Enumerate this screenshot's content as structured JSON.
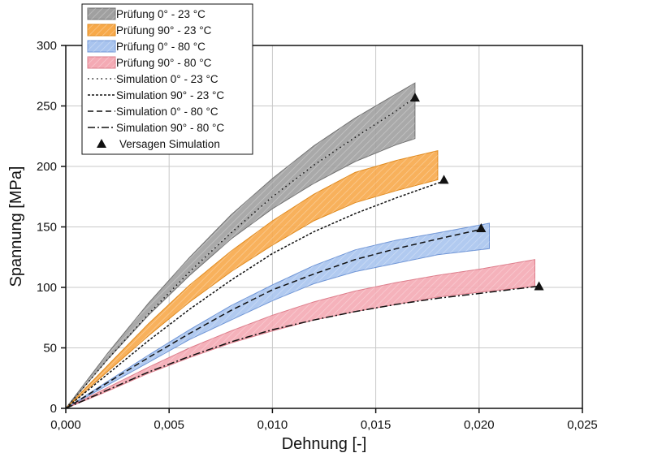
{
  "chart_data": {
    "type": "area",
    "xlabel": "Dehnung [-]",
    "ylabel": "Spannung [MPa]",
    "xlim": [
      0,
      0.025
    ],
    "ylim": [
      0,
      300
    ],
    "x_ticks": [
      0,
      0.005,
      0.01,
      0.015,
      0.02,
      0.025
    ],
    "x_tick_labels": [
      "0,000",
      "0,005",
      "0,010",
      "0,015",
      "0,020",
      "0,025"
    ],
    "y_ticks": [
      0,
      50,
      100,
      150,
      200,
      250,
      300
    ],
    "y_tick_labels": [
      "0",
      "50",
      "100",
      "150",
      "200",
      "250",
      "300"
    ],
    "grid": true,
    "legend_position": "top-left",
    "bands": [
      {
        "name": "Prüfung 0°   - 23 °C",
        "color": "#a0a0a0",
        "edge": "#707070",
        "upper": [
          [
            0,
            0
          ],
          [
            0.002,
            45
          ],
          [
            0.004,
            87
          ],
          [
            0.006,
            125
          ],
          [
            0.008,
            160
          ],
          [
            0.01,
            190
          ],
          [
            0.012,
            217
          ],
          [
            0.014,
            240
          ],
          [
            0.016,
            260
          ],
          [
            0.0169,
            269
          ]
        ],
        "lower": [
          [
            0,
            0
          ],
          [
            0.002,
            40
          ],
          [
            0.004,
            77
          ],
          [
            0.006,
            110
          ],
          [
            0.008,
            140
          ],
          [
            0.01,
            165
          ],
          [
            0.012,
            186
          ],
          [
            0.014,
            204
          ],
          [
            0.016,
            218
          ],
          [
            0.0169,
            223
          ]
        ]
      },
      {
        "name": "Prüfung 90° - 23 °C",
        "color": "#f7a94a",
        "edge": "#e08a1e",
        "upper": [
          [
            0,
            0
          ],
          [
            0.002,
            35
          ],
          [
            0.004,
            70
          ],
          [
            0.006,
            102
          ],
          [
            0.008,
            130
          ],
          [
            0.01,
            155
          ],
          [
            0.012,
            177
          ],
          [
            0.014,
            195
          ],
          [
            0.016,
            205
          ],
          [
            0.018,
            213
          ]
        ],
        "lower": [
          [
            0,
            0
          ],
          [
            0.002,
            30
          ],
          [
            0.004,
            60
          ],
          [
            0.006,
            88
          ],
          [
            0.008,
            113
          ],
          [
            0.01,
            135
          ],
          [
            0.012,
            155
          ],
          [
            0.014,
            170
          ],
          [
            0.016,
            180
          ],
          [
            0.018,
            189
          ]
        ]
      },
      {
        "name": "Prüfung 0°   - 80 °C",
        "color": "#a9c4ee",
        "edge": "#6f95d6",
        "upper": [
          [
            0,
            0
          ],
          [
            0.002,
            22
          ],
          [
            0.004,
            44
          ],
          [
            0.006,
            65
          ],
          [
            0.008,
            85
          ],
          [
            0.01,
            102
          ],
          [
            0.012,
            118
          ],
          [
            0.014,
            131
          ],
          [
            0.016,
            139
          ],
          [
            0.018,
            145
          ],
          [
            0.0205,
            153
          ]
        ],
        "lower": [
          [
            0,
            0
          ],
          [
            0.002,
            19
          ],
          [
            0.004,
            38
          ],
          [
            0.006,
            57
          ],
          [
            0.008,
            73
          ],
          [
            0.01,
            89
          ],
          [
            0.012,
            103
          ],
          [
            0.014,
            113
          ],
          [
            0.016,
            120
          ],
          [
            0.018,
            127
          ],
          [
            0.0205,
            132
          ]
        ]
      },
      {
        "name": "Prüfung 90° - 80 °C",
        "color": "#f4aab4",
        "edge": "#dd7d8b",
        "upper": [
          [
            0,
            0
          ],
          [
            0.002,
            17
          ],
          [
            0.004,
            34
          ],
          [
            0.006,
            50
          ],
          [
            0.008,
            64
          ],
          [
            0.01,
            77
          ],
          [
            0.012,
            88
          ],
          [
            0.014,
            97
          ],
          [
            0.016,
            104
          ],
          [
            0.018,
            110
          ],
          [
            0.02,
            115
          ],
          [
            0.0227,
            123
          ]
        ],
        "lower": [
          [
            0,
            0
          ],
          [
            0.002,
            14
          ],
          [
            0.004,
            29
          ],
          [
            0.006,
            42
          ],
          [
            0.008,
            54
          ],
          [
            0.01,
            64
          ],
          [
            0.012,
            73
          ],
          [
            0.014,
            80
          ],
          [
            0.016,
            86
          ],
          [
            0.018,
            92
          ],
          [
            0.02,
            96
          ],
          [
            0.0227,
            101
          ]
        ]
      }
    ],
    "series": [
      {
        "name": "Simulation 0°   - 23 °C",
        "dash": "1.5,4",
        "points": [
          [
            0,
            0
          ],
          [
            0.002,
            40
          ],
          [
            0.004,
            78
          ],
          [
            0.006,
            113
          ],
          [
            0.008,
            145
          ],
          [
            0.01,
            175
          ],
          [
            0.012,
            201
          ],
          [
            0.014,
            224
          ],
          [
            0.016,
            246
          ],
          [
            0.0169,
            257
          ]
        ]
      },
      {
        "name": "Simulation 90° - 23 °C",
        "dash": "3,2",
        "points": [
          [
            0,
            0
          ],
          [
            0.002,
            28
          ],
          [
            0.004,
            56
          ],
          [
            0.006,
            82
          ],
          [
            0.008,
            106
          ],
          [
            0.01,
            128
          ],
          [
            0.012,
            146
          ],
          [
            0.014,
            161
          ],
          [
            0.016,
            174
          ],
          [
            0.0183,
            188
          ]
        ]
      },
      {
        "name": "Simulation 0°   - 80 °C",
        "dash": "7,4",
        "points": [
          [
            0,
            0
          ],
          [
            0.002,
            21
          ],
          [
            0.004,
            42
          ],
          [
            0.006,
            62
          ],
          [
            0.008,
            81
          ],
          [
            0.01,
            98
          ],
          [
            0.012,
            111
          ],
          [
            0.014,
            123
          ],
          [
            0.016,
            132
          ],
          [
            0.018,
            140
          ],
          [
            0.0201,
            148
          ]
        ]
      },
      {
        "name": "Simulation 90° - 80 °C",
        "dash": "9,3,2,3",
        "points": [
          [
            0,
            0
          ],
          [
            0.002,
            15
          ],
          [
            0.004,
            30
          ],
          [
            0.006,
            43
          ],
          [
            0.008,
            55
          ],
          [
            0.01,
            65
          ],
          [
            0.012,
            73
          ],
          [
            0.014,
            80
          ],
          [
            0.016,
            86
          ],
          [
            0.018,
            91
          ],
          [
            0.02,
            95
          ],
          [
            0.0229,
            101
          ]
        ]
      }
    ],
    "failure_points": {
      "name": "Versagen Simulation",
      "points": [
        [
          0.0169,
          257
        ],
        [
          0.0183,
          189
        ],
        [
          0.0201,
          149
        ],
        [
          0.0229,
          101
        ]
      ]
    }
  }
}
